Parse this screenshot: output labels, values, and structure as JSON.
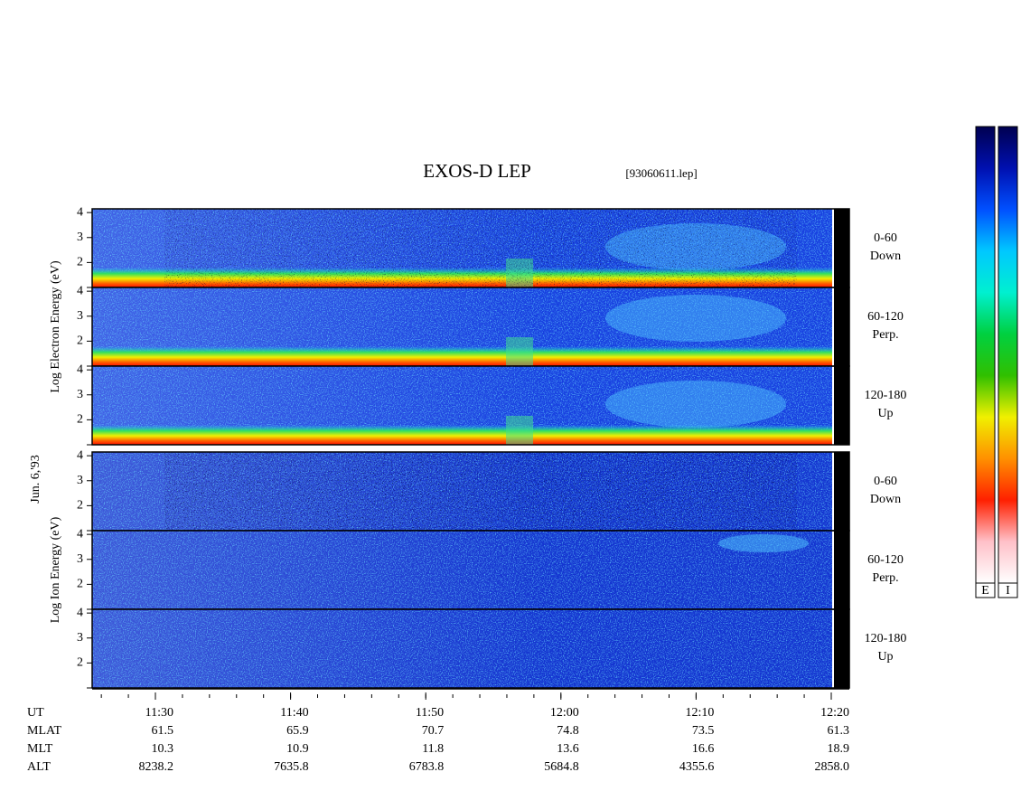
{
  "chart_data": {
    "type": "spectrogram",
    "title": "EXOS-D LEP",
    "file_label": "[93060611.lep]",
    "date_label": "Jun. 6,'93",
    "ylim": [
      1,
      4.15
    ],
    "yticks": [
      2,
      3,
      4
    ],
    "groups": [
      {
        "species_label": "Log Electron Energy (eV)",
        "panels": [
          {
            "label": [
              "0-60",
              "Down"
            ]
          },
          {
            "label": [
              "60-120",
              "Perp."
            ]
          },
          {
            "label": [
              "120-180",
              "Up"
            ]
          }
        ]
      },
      {
        "species_label": "Log Ion Energy (eV)",
        "panels": [
          {
            "label": [
              "0-60",
              "Down"
            ]
          },
          {
            "label": [
              "60-120",
              "Perp."
            ]
          },
          {
            "label": [
              "120-180",
              "Up"
            ]
          }
        ]
      }
    ],
    "ephemeris": {
      "rows": [
        {
          "name": "UT",
          "values": [
            "11:30",
            "11:40",
            "11:50",
            "12:00",
            "12:10",
            "12:20"
          ]
        },
        {
          "name": "MLAT",
          "values": [
            "61.5",
            "65.9",
            "70.7",
            "74.8",
            "73.5",
            "61.3"
          ]
        },
        {
          "name": "MLT",
          "values": [
            "10.3",
            "10.9",
            "11.8",
            "13.6",
            "16.6",
            "18.9"
          ]
        },
        {
          "name": "ALT",
          "values": [
            "8238.2",
            "7635.8",
            "6783.8",
            "5684.8",
            "4355.6",
            "2858.0"
          ]
        }
      ]
    },
    "colorbar": {
      "labels": [
        "E",
        "I"
      ],
      "colors": [
        "#000050",
        "#0010b0",
        "#0050ff",
        "#00c8ff",
        "#00f0d0",
        "#00d040",
        "#30c000",
        "#f0f000",
        "#ff9000",
        "#ff2000",
        "#ffc0c8",
        "#ffffff"
      ]
    }
  }
}
